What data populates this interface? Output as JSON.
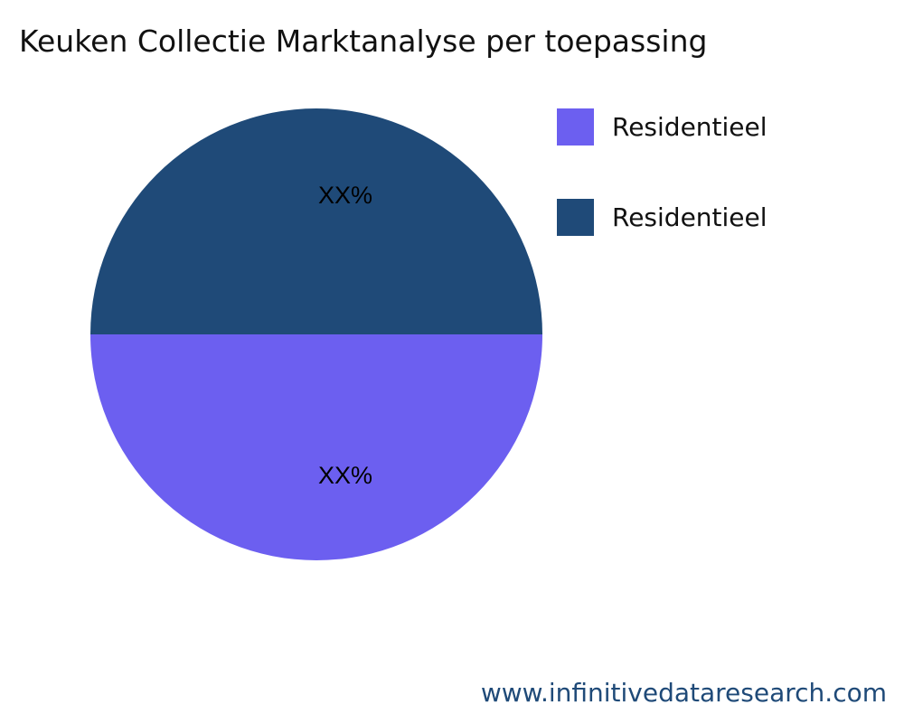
{
  "chart_data": {
    "type": "pie",
    "title": "Keuken Collectie Marktanalyse per toepassing",
    "slices": [
      {
        "label": "Residentieel",
        "value": 50,
        "data_label": "XX%",
        "color": "#6c5ff0"
      },
      {
        "label": "Residentieel",
        "value": 50,
        "data_label": "XX%",
        "color": "#1f4a78"
      }
    ],
    "legend_position": "top-right"
  },
  "footer": {
    "website": "www.infinitivedataresearch.com"
  }
}
